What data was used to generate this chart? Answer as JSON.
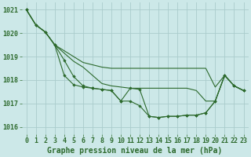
{
  "bg_color": "#cce8e8",
  "grid_color": "#aacccc",
  "line_color": "#2d6a2d",
  "marker_color": "#2d6a2d",
  "xlabel": "Graphe pression niveau de la mer (hPa)",
  "ylim": [
    1015.7,
    1021.3
  ],
  "xlim": [
    -0.5,
    23.5
  ],
  "yticks": [
    1016,
    1017,
    1018,
    1019,
    1020,
    1021
  ],
  "xticks": [
    0,
    1,
    2,
    3,
    4,
    5,
    6,
    7,
    8,
    9,
    10,
    11,
    12,
    13,
    14,
    15,
    16,
    17,
    18,
    19,
    20,
    21,
    22,
    23
  ],
  "series": [
    [
      1021.0,
      1020.35,
      1020.05,
      1019.5,
      1019.25,
      1019.0,
      1018.75,
      1018.65,
      1018.55,
      1018.5,
      1018.5,
      1018.5,
      1018.5,
      1018.5,
      1018.5,
      1018.5,
      1018.5,
      1018.5,
      1018.5,
      1018.5,
      1017.7,
      1018.2,
      1017.75,
      1017.55
    ],
    [
      1021.0,
      1020.35,
      1020.05,
      1019.5,
      1019.15,
      1018.8,
      1018.55,
      1018.2,
      1017.85,
      1017.75,
      1017.7,
      1017.65,
      1017.65,
      1017.65,
      1017.65,
      1017.65,
      1017.65,
      1017.65,
      1017.55,
      1017.1,
      1017.1,
      1018.2,
      1017.75,
      1017.55
    ],
    [
      1021.0,
      1020.35,
      1020.05,
      1019.5,
      1018.2,
      1017.8,
      1017.7,
      1017.65,
      1017.6,
      1017.55,
      1017.1,
      1017.65,
      1017.6,
      1016.45,
      1016.4,
      1016.45,
      1016.45,
      1016.5,
      1016.5,
      1016.6,
      1017.1,
      1018.2,
      1017.75,
      1017.55
    ],
    [
      1021.0,
      1020.35,
      1020.05,
      1019.5,
      1018.85,
      1018.15,
      1017.75,
      1017.65,
      1017.6,
      1017.55,
      1017.1,
      1017.1,
      1016.9,
      1016.45,
      1016.4,
      1016.45,
      1016.45,
      1016.5,
      1016.5,
      1016.6,
      1017.1,
      1018.2,
      1017.75,
      1017.55
    ]
  ],
  "marker_series": [
    2,
    3
  ],
  "tick_fontsize": 6,
  "label_fontsize": 7
}
